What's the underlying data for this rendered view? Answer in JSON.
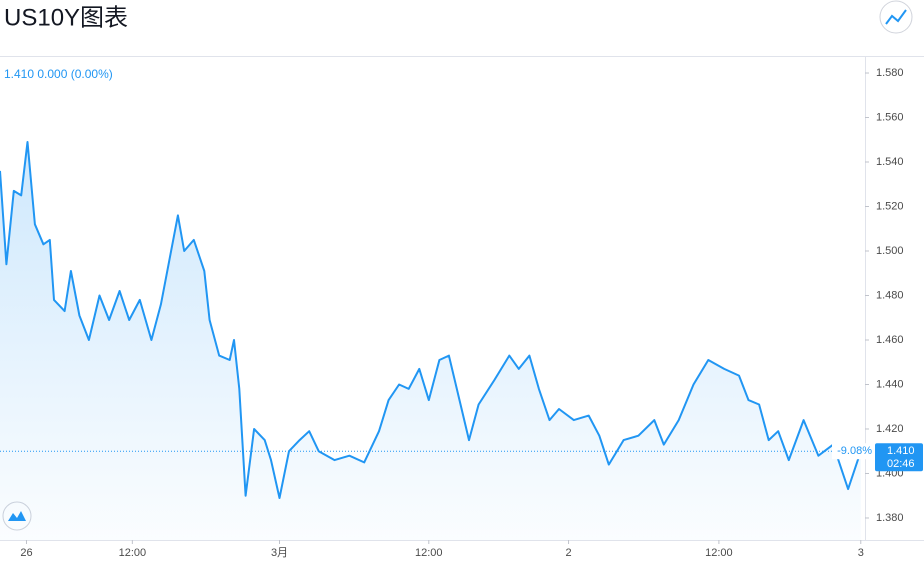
{
  "chart_data": {
    "type": "line",
    "title": "US10Y图表",
    "legend_text": "1.410 0.000 (0.00%)",
    "last_price": {
      "value": 1.41,
      "label": "1.410"
    },
    "countdown": "02:46",
    "change_label": "-9.08%",
    "color": "#2196f3",
    "x": [
      -2.5,
      -1.9,
      -1.2,
      -0.5,
      0.1,
      0.8,
      1.6,
      2.2,
      2.6,
      3.6,
      4.2,
      5.0,
      5.9,
      6.9,
      7.8,
      8.8,
      9.7,
      10.7,
      11.8,
      12.7,
      13.5,
      14.3,
      14.9,
      15.8,
      16.8,
      17.3,
      18.2,
      19.2,
      19.6,
      20.1,
      20.7,
      21.5,
      22.5,
      23.1,
      23.9,
      24.8,
      25.8,
      26.7,
      27.6,
      29.1,
      30.5,
      31.9,
      33.3,
      34.2,
      35.2,
      36.1,
      37.1,
      38.0,
      39.0,
      39.9,
      40.9,
      41.8,
      42.7,
      44.2,
      45.6,
      46.5,
      47.5,
      48.4,
      49.4,
      50.3,
      51.7,
      53.1,
      54.1,
      55.0,
      56.4,
      57.8,
      59.3,
      60.2,
      61.6,
      63.0,
      64.4,
      65.9,
      67.3,
      68.2,
      69.2,
      70.1,
      71.0,
      72.0,
      73.4,
      74.8,
      76.2,
      77.6,
      78.8
    ],
    "values": [
      1.536,
      1.494,
      1.527,
      1.525,
      1.549,
      1.512,
      1.503,
      1.505,
      1.478,
      1.473,
      1.491,
      1.471,
      1.46,
      1.48,
      1.469,
      1.482,
      1.469,
      1.478,
      1.46,
      1.476,
      1.496,
      1.516,
      1.5,
      1.505,
      1.491,
      1.469,
      1.453,
      1.451,
      1.46,
      1.438,
      1.39,
      1.42,
      1.415,
      1.406,
      1.389,
      1.41,
      1.415,
      1.419,
      1.41,
      1.406,
      1.408,
      1.405,
      1.419,
      1.433,
      1.44,
      1.438,
      1.447,
      1.433,
      1.451,
      1.453,
      1.433,
      1.415,
      1.431,
      1.442,
      1.453,
      1.447,
      1.453,
      1.438,
      1.424,
      1.429,
      1.424,
      1.426,
      1.417,
      1.404,
      1.415,
      1.417,
      1.424,
      1.413,
      1.424,
      1.44,
      1.451,
      1.447,
      1.444,
      1.433,
      1.431,
      1.415,
      1.419,
      1.406,
      1.424,
      1.408,
      1.413,
      1.393,
      1.41
    ],
    "xlim": [
      -2.5,
      79.2
    ],
    "xticks": [
      {
        "value": 0,
        "label": "26"
      },
      {
        "value": 10,
        "label": "12:00"
      },
      {
        "value": 23.9,
        "label": "3月"
      },
      {
        "value": 38,
        "label": "12:00"
      },
      {
        "value": 51.2,
        "label": "2"
      },
      {
        "value": 65.4,
        "label": "12:00"
      },
      {
        "value": 78.8,
        "label": "3"
      }
    ],
    "ylim": [
      1.3701,
      1.5872
    ],
    "yticks": [
      {
        "value": 1.38,
        "label": "1.380"
      },
      {
        "value": 1.4,
        "label": "1.400"
      },
      {
        "value": 1.42,
        "label": "1.420"
      },
      {
        "value": 1.44,
        "label": "1.440"
      },
      {
        "value": 1.46,
        "label": "1.460"
      },
      {
        "value": 1.48,
        "label": "1.480"
      },
      {
        "value": 1.5,
        "label": "1.500"
      },
      {
        "value": 1.52,
        "label": "1.520"
      },
      {
        "value": 1.54,
        "label": "1.540"
      },
      {
        "value": 1.56,
        "label": "1.560"
      },
      {
        "value": 1.58,
        "label": "1.580"
      }
    ]
  }
}
